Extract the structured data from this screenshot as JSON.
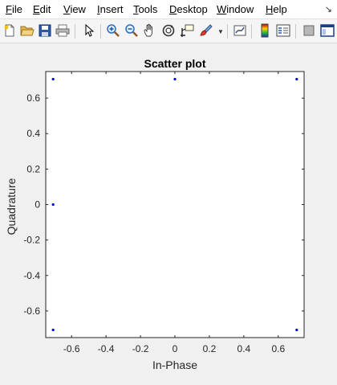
{
  "menu": {
    "items": [
      {
        "label": "File",
        "ul": "F",
        "rest": "ile"
      },
      {
        "label": "Edit",
        "ul": "E",
        "rest": "dit"
      },
      {
        "label": "View",
        "ul": "V",
        "rest": "iew"
      },
      {
        "label": "Insert",
        "ul": "I",
        "rest": "nsert"
      },
      {
        "label": "Tools",
        "ul": "T",
        "rest": "ools"
      },
      {
        "label": "Desktop",
        "ul": "D",
        "rest": "esktop"
      },
      {
        "label": "Window",
        "ul": "W",
        "rest": "indow"
      },
      {
        "label": "Help",
        "ul": "H",
        "rest": "elp"
      }
    ],
    "overflow_icon": "arrow-icon"
  },
  "toolbar": {
    "buttons": [
      "new-figure-icon",
      "open-file-icon",
      "save-icon",
      "print-icon",
      "select-arrow-icon",
      "zoom-in-icon",
      "zoom-out-icon",
      "pan-icon",
      "rotate-3d-icon",
      "data-cursor-icon",
      "brush-icon",
      "link-plot-icon",
      "colorbar-icon",
      "legend-icon",
      "hide-plot-tools-icon",
      "show-plot-tools-icon"
    ]
  },
  "chart_data": {
    "type": "scatter",
    "title": "Scatter plot",
    "xlabel": "In-Phase",
    "ylabel": "Quadrature",
    "xlim": [
      -0.75,
      0.75
    ],
    "ylim": [
      -0.75,
      0.75
    ],
    "xticks": [
      -0.6,
      -0.4,
      -0.2,
      0,
      0.2,
      0.4,
      0.6
    ],
    "xtick_labels": [
      "-0.6",
      "-0.4",
      "-0.2",
      "0",
      "0.2",
      "0.4",
      "0.6"
    ],
    "yticks": [
      -0.6,
      -0.4,
      -0.2,
      0,
      0.2,
      0.4,
      0.6
    ],
    "ytick_labels": [
      "-0.6",
      "-0.4",
      "-0.2",
      "0",
      "0.2",
      "0.4",
      "0.6"
    ],
    "grid": false,
    "marker_color": "#0000ff",
    "points": [
      {
        "x": -0.7071,
        "y": 0.7071
      },
      {
        "x": 0,
        "y": 0.7071
      },
      {
        "x": 0.7071,
        "y": 0.7071
      },
      {
        "x": -0.7071,
        "y": 0
      },
      {
        "x": -0.7071,
        "y": -0.7071
      },
      {
        "x": 0.7071,
        "y": -0.7071
      }
    ]
  }
}
